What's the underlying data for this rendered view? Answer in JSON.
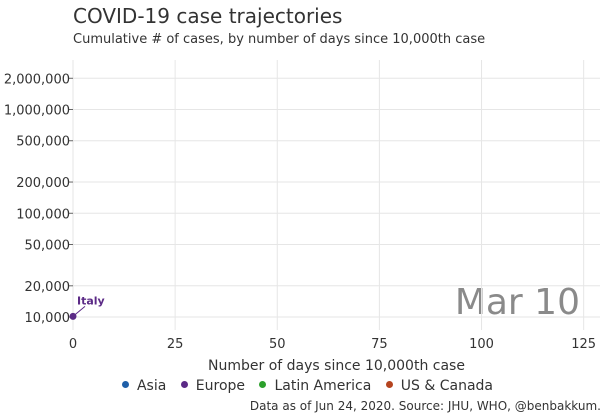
{
  "header": {
    "title": "COVID-19 case trajectories",
    "subtitle": "Cumulative # of cases, by number of days since 10,000th case"
  },
  "footer": {
    "source": "Data as of Jun 24, 2020. Source: JHU, WHO, @benbakkum."
  },
  "chart_data": {
    "type": "scatter",
    "title": "COVID-19 case trajectories",
    "subtitle": "Cumulative # of cases, by number of days since 10,000th case",
    "xlabel": "Number of days since 10,000th case",
    "ylabel": "",
    "xlim": [
      0,
      129
    ],
    "ylim": [
      7500,
      3000000
    ],
    "y_scale": "log",
    "grid": true,
    "x_ticks": [
      0,
      25,
      50,
      75,
      100,
      125
    ],
    "x_tick_labels": [
      "0",
      "25",
      "50",
      "75",
      "100",
      "125"
    ],
    "y_ticks": [
      10000,
      20000,
      50000,
      100000,
      200000,
      500000,
      1000000,
      2000000
    ],
    "y_tick_labels": [
      "10,000",
      "20,000",
      "50,000",
      "100,000",
      "200,000",
      "500,000",
      "1,000,000",
      "2,000,000"
    ],
    "date_label": "Mar 10",
    "legend": {
      "position": "bottom",
      "items": [
        {
          "name": "Asia",
          "color": "#1f5fa8"
        },
        {
          "name": "Europe",
          "color": "#5b2a86"
        },
        {
          "name": "Latin America",
          "color": "#2ca02c"
        },
        {
          "name": "US & Canada",
          "color": "#b5441f"
        }
      ]
    },
    "series": [
      {
        "name": "Italy",
        "region": "Europe",
        "color": "#5b2a86",
        "points": [
          {
            "x": 0,
            "y": 10149
          }
        ]
      }
    ]
  }
}
